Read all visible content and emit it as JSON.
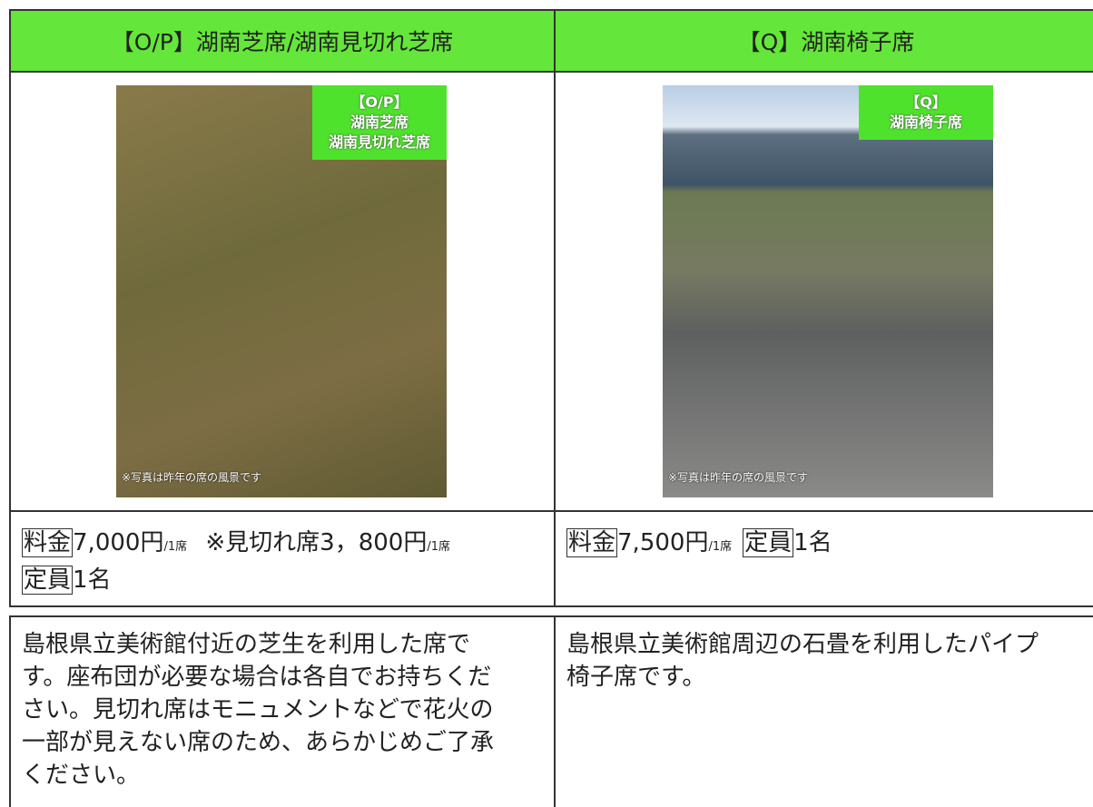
{
  "table": {
    "header": [
      "【O/P】湖南芝席/湖南見切れ芝席",
      "【Q】湖南椅子席"
    ],
    "photos": [
      {
        "label_lines": [
          "【O/P】",
          "湖南芝席",
          "湖南見切れ芝席"
        ],
        "caption": "※写真は昨年の席の風景です"
      },
      {
        "label_lines": [
          "【Q】",
          "湖南椅子席"
        ],
        "caption": "※写真は昨年の席の風景です"
      }
    ],
    "prices": [
      [
        [
          {
            "t": "料金",
            "style": "tag"
          },
          {
            "t": "7,000円",
            "style": "plain"
          },
          {
            "t": "/1席",
            "style": "small"
          },
          {
            "t": " ※見切れ席3，800円",
            "style": "plain"
          },
          {
            "t": "/1席",
            "style": "small"
          }
        ],
        [
          {
            "t": "定員",
            "style": "tag"
          },
          {
            "t": "1名",
            "style": "plain"
          }
        ]
      ],
      [
        [
          {
            "t": "料金",
            "style": "tag"
          },
          {
            "t": "7,500円",
            "style": "plain"
          },
          {
            "t": "/1席",
            "style": "small"
          },
          {
            "t": "定員",
            "style": "tag"
          },
          {
            "t": "1名",
            "style": "plain"
          }
        ]
      ]
    ],
    "descriptions": [
      [
        "島根県立美術館付近の芝生を利用した席で",
        "す。座布団が必要な場合は各自でお持ちくだ",
        "さい。見切れ席はモニュメントなどで花火の",
        "一部が見えない席のため、あらかじめご了承",
        "ください。"
      ],
      [
        "島根県立美術館周辺の石畳を利用したパイプ",
        "椅子席です。"
      ]
    ]
  }
}
